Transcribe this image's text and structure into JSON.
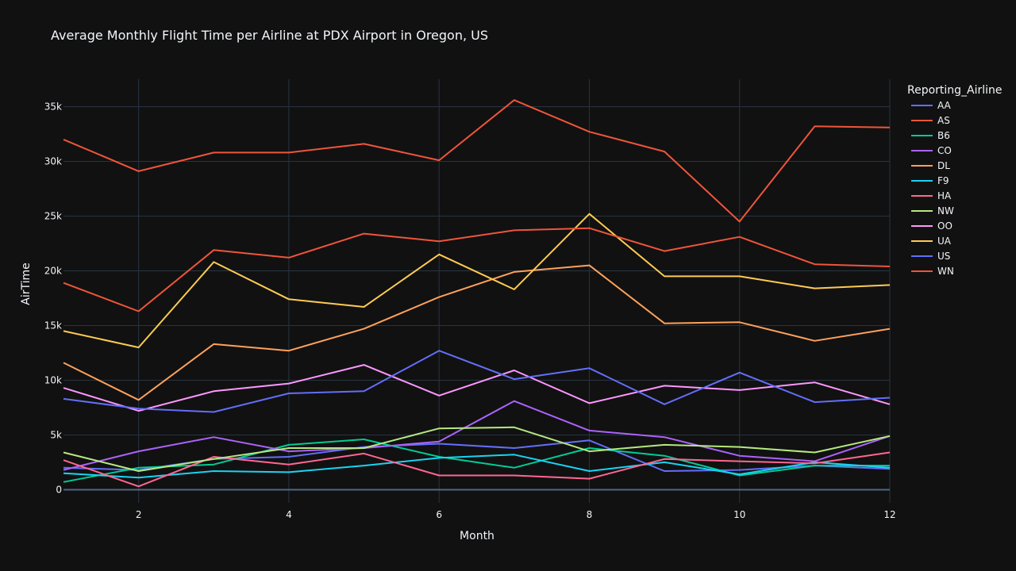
{
  "chart_data": {
    "type": "line",
    "title": "Average Monthly Flight Time per Airline at PDX Airport in Oregon, US",
    "xlabel": "Month",
    "ylabel": "AirTime",
    "legend_title": "Reporting_Airline",
    "xlim": [
      1,
      12
    ],
    "ylim": [
      -1200,
      37500
    ],
    "x_ticks": [
      2,
      4,
      6,
      8,
      10,
      12
    ],
    "y_ticks": [
      0,
      5000,
      10000,
      15000,
      20000,
      25000,
      30000,
      35000
    ],
    "y_tick_labels": [
      "0",
      "5k",
      "10k",
      "15k",
      "20k",
      "25k",
      "30k",
      "35k"
    ],
    "x": [
      1,
      2,
      3,
      4,
      5,
      6,
      7,
      8,
      9,
      10,
      11,
      12
    ],
    "series": [
      {
        "name": "AA",
        "color": "#636efa",
        "values": [
          2000,
          1800,
          2800,
          3000,
          3900,
          4200,
          3800,
          4500,
          1700,
          1800,
          2200,
          1900
        ]
      },
      {
        "name": "AS",
        "color": "#ef553b",
        "values": [
          32000,
          29100,
          30800,
          30800,
          31600,
          30100,
          35600,
          32700,
          30900,
          24500,
          33200,
          33100
        ]
      },
      {
        "name": "B6",
        "color": "#00cc96",
        "values": [
          700,
          2000,
          2300,
          4100,
          4600,
          3000,
          2000,
          3800,
          3100,
          1300,
          2200,
          2200
        ]
      },
      {
        "name": "CO",
        "color": "#ab63fa",
        "values": [
          1800,
          3500,
          4800,
          3500,
          3800,
          4400,
          8100,
          5400,
          4800,
          3100,
          2600,
          4900
        ]
      },
      {
        "name": "DL",
        "color": "#ffa15a",
        "values": [
          11600,
          8200,
          13300,
          12700,
          14700,
          17600,
          19900,
          20500,
          15200,
          15300,
          13600,
          14700
        ]
      },
      {
        "name": "F9",
        "color": "#19d3f3",
        "values": [
          1500,
          1100,
          1700,
          1600,
          2200,
          2900,
          3200,
          1700,
          2500,
          1400,
          2500,
          2000
        ]
      },
      {
        "name": "HA",
        "color": "#ff6692",
        "values": [
          2700,
          300,
          3000,
          2300,
          3300,
          1300,
          1300,
          1000,
          2800,
          2600,
          2400,
          3400
        ]
      },
      {
        "name": "NW",
        "color": "#b6e880",
        "values": [
          3400,
          1700,
          2800,
          3800,
          3800,
          5600,
          5700,
          3500,
          4100,
          3900,
          3400,
          4900
        ]
      },
      {
        "name": "OO",
        "color": "#ff97ff",
        "values": [
          9300,
          7200,
          9000,
          9700,
          11400,
          8600,
          10900,
          7900,
          9500,
          9100,
          9800,
          7800
        ]
      },
      {
        "name": "UA",
        "color": "#fecb52",
        "values": [
          14500,
          13000,
          20800,
          17400,
          16700,
          21500,
          18300,
          25200,
          19500,
          19500,
          18400,
          18700
        ]
      },
      {
        "name": "US",
        "color": "#636efa",
        "values": [
          8300,
          7400,
          7100,
          8800,
          9000,
          12700,
          10100,
          11100,
          7800,
          10700,
          8000,
          8400
        ]
      },
      {
        "name": "WN",
        "color": "#ef553b",
        "values": [
          18900,
          16300,
          21900,
          21200,
          23400,
          22700,
          23700,
          23900,
          21800,
          23100,
          20600,
          20400
        ]
      }
    ]
  }
}
